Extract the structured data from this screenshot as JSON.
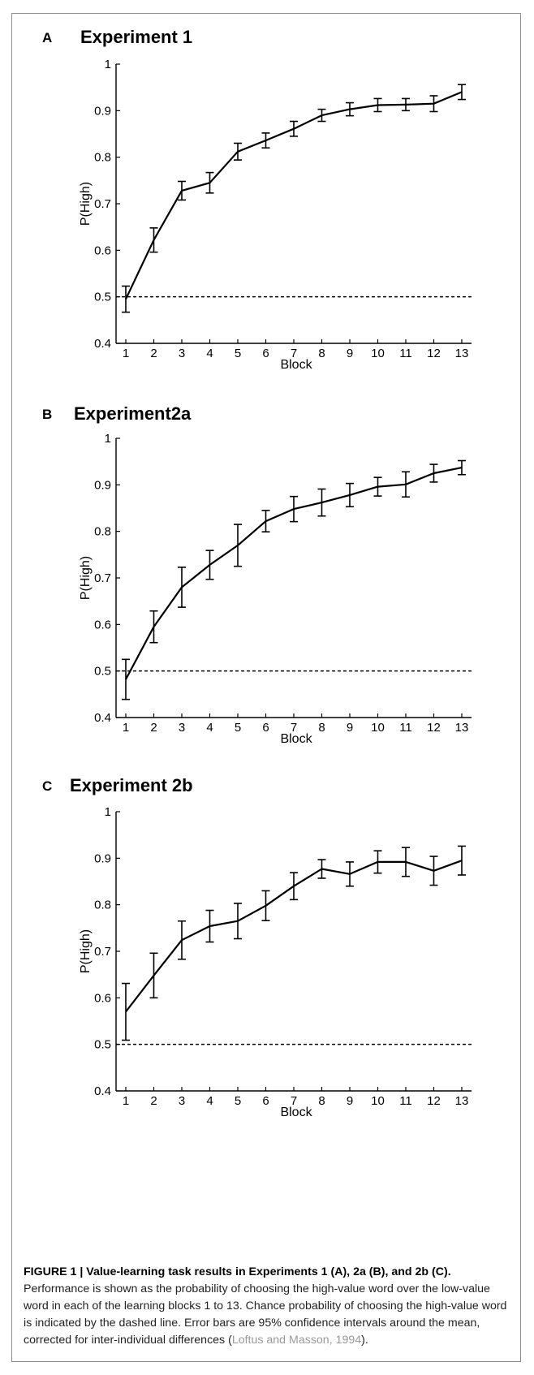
{
  "chart_data": [
    {
      "type": "line",
      "panel": "A",
      "title": "Experiment 1",
      "xlabel": "Block",
      "ylabel": "P(High)",
      "xlim": [
        1,
        13
      ],
      "ylim": [
        0.4,
        1
      ],
      "categories": [
        "1",
        "2",
        "3",
        "4",
        "5",
        "6",
        "7",
        "8",
        "9",
        "10",
        "11",
        "12",
        "13"
      ],
      "yticks": [
        "0.4",
        "0.5",
        "0.6",
        "0.7",
        "0.8",
        "0.9",
        "1"
      ],
      "reference_line": 0.5,
      "values": [
        0.495,
        0.622,
        0.728,
        0.745,
        0.812,
        0.836,
        0.861,
        0.89,
        0.903,
        0.912,
        0.913,
        0.915,
        0.94
      ],
      "ci": [
        0.028,
        0.026,
        0.02,
        0.022,
        0.018,
        0.016,
        0.016,
        0.013,
        0.014,
        0.014,
        0.013,
        0.017,
        0.016
      ]
    },
    {
      "type": "line",
      "panel": "B",
      "title": "Experiment2a",
      "xlabel": "Block",
      "ylabel": "P(High)",
      "xlim": [
        1,
        13
      ],
      "ylim": [
        0.4,
        1
      ],
      "categories": [
        "1",
        "2",
        "3",
        "4",
        "5",
        "6",
        "7",
        "8",
        "9",
        "10",
        "11",
        "12",
        "13"
      ],
      "yticks": [
        "0.4",
        "0.5",
        "0.6",
        "0.7",
        "0.8",
        "0.9",
        "1"
      ],
      "reference_line": 0.5,
      "values": [
        0.482,
        0.595,
        0.68,
        0.728,
        0.77,
        0.822,
        0.848,
        0.862,
        0.878,
        0.896,
        0.901,
        0.925,
        0.937
      ],
      "ci": [
        0.043,
        0.034,
        0.043,
        0.031,
        0.045,
        0.023,
        0.027,
        0.029,
        0.025,
        0.02,
        0.027,
        0.019,
        0.015
      ]
    },
    {
      "type": "line",
      "panel": "C",
      "title": "Experiment 2b",
      "xlabel": "Block",
      "ylabel": "P(High)",
      "xlim": [
        1,
        13
      ],
      "ylim": [
        0.4,
        1
      ],
      "categories": [
        "1",
        "2",
        "3",
        "4",
        "5",
        "6",
        "7",
        "8",
        "9",
        "10",
        "11",
        "12",
        "13"
      ],
      "yticks": [
        "0.4",
        "0.5",
        "0.6",
        "0.7",
        "0.8",
        "0.9",
        "1"
      ],
      "reference_line": 0.5,
      "values": [
        0.57,
        0.648,
        0.724,
        0.754,
        0.765,
        0.798,
        0.84,
        0.877,
        0.866,
        0.892,
        0.892,
        0.873,
        0.895
      ],
      "ci": [
        0.061,
        0.048,
        0.041,
        0.034,
        0.038,
        0.032,
        0.029,
        0.02,
        0.026,
        0.024,
        0.031,
        0.031,
        0.031
      ]
    }
  ],
  "caption": {
    "bold": "FIGURE 1 | Value-learning task results in Experiments 1 (A), 2a (B), and 2b (C).",
    "text": " Performance is shown as the probability of choosing the high-value word over the low-value word in each of the learning blocks 1 to 13. Chance probability of choosing the high-value word is indicated by the dashed line. Error bars are 95% confidence intervals around the mean, corrected for inter-individual differences (",
    "ref": "Loftus and Masson, 1994",
    "end": ")."
  }
}
